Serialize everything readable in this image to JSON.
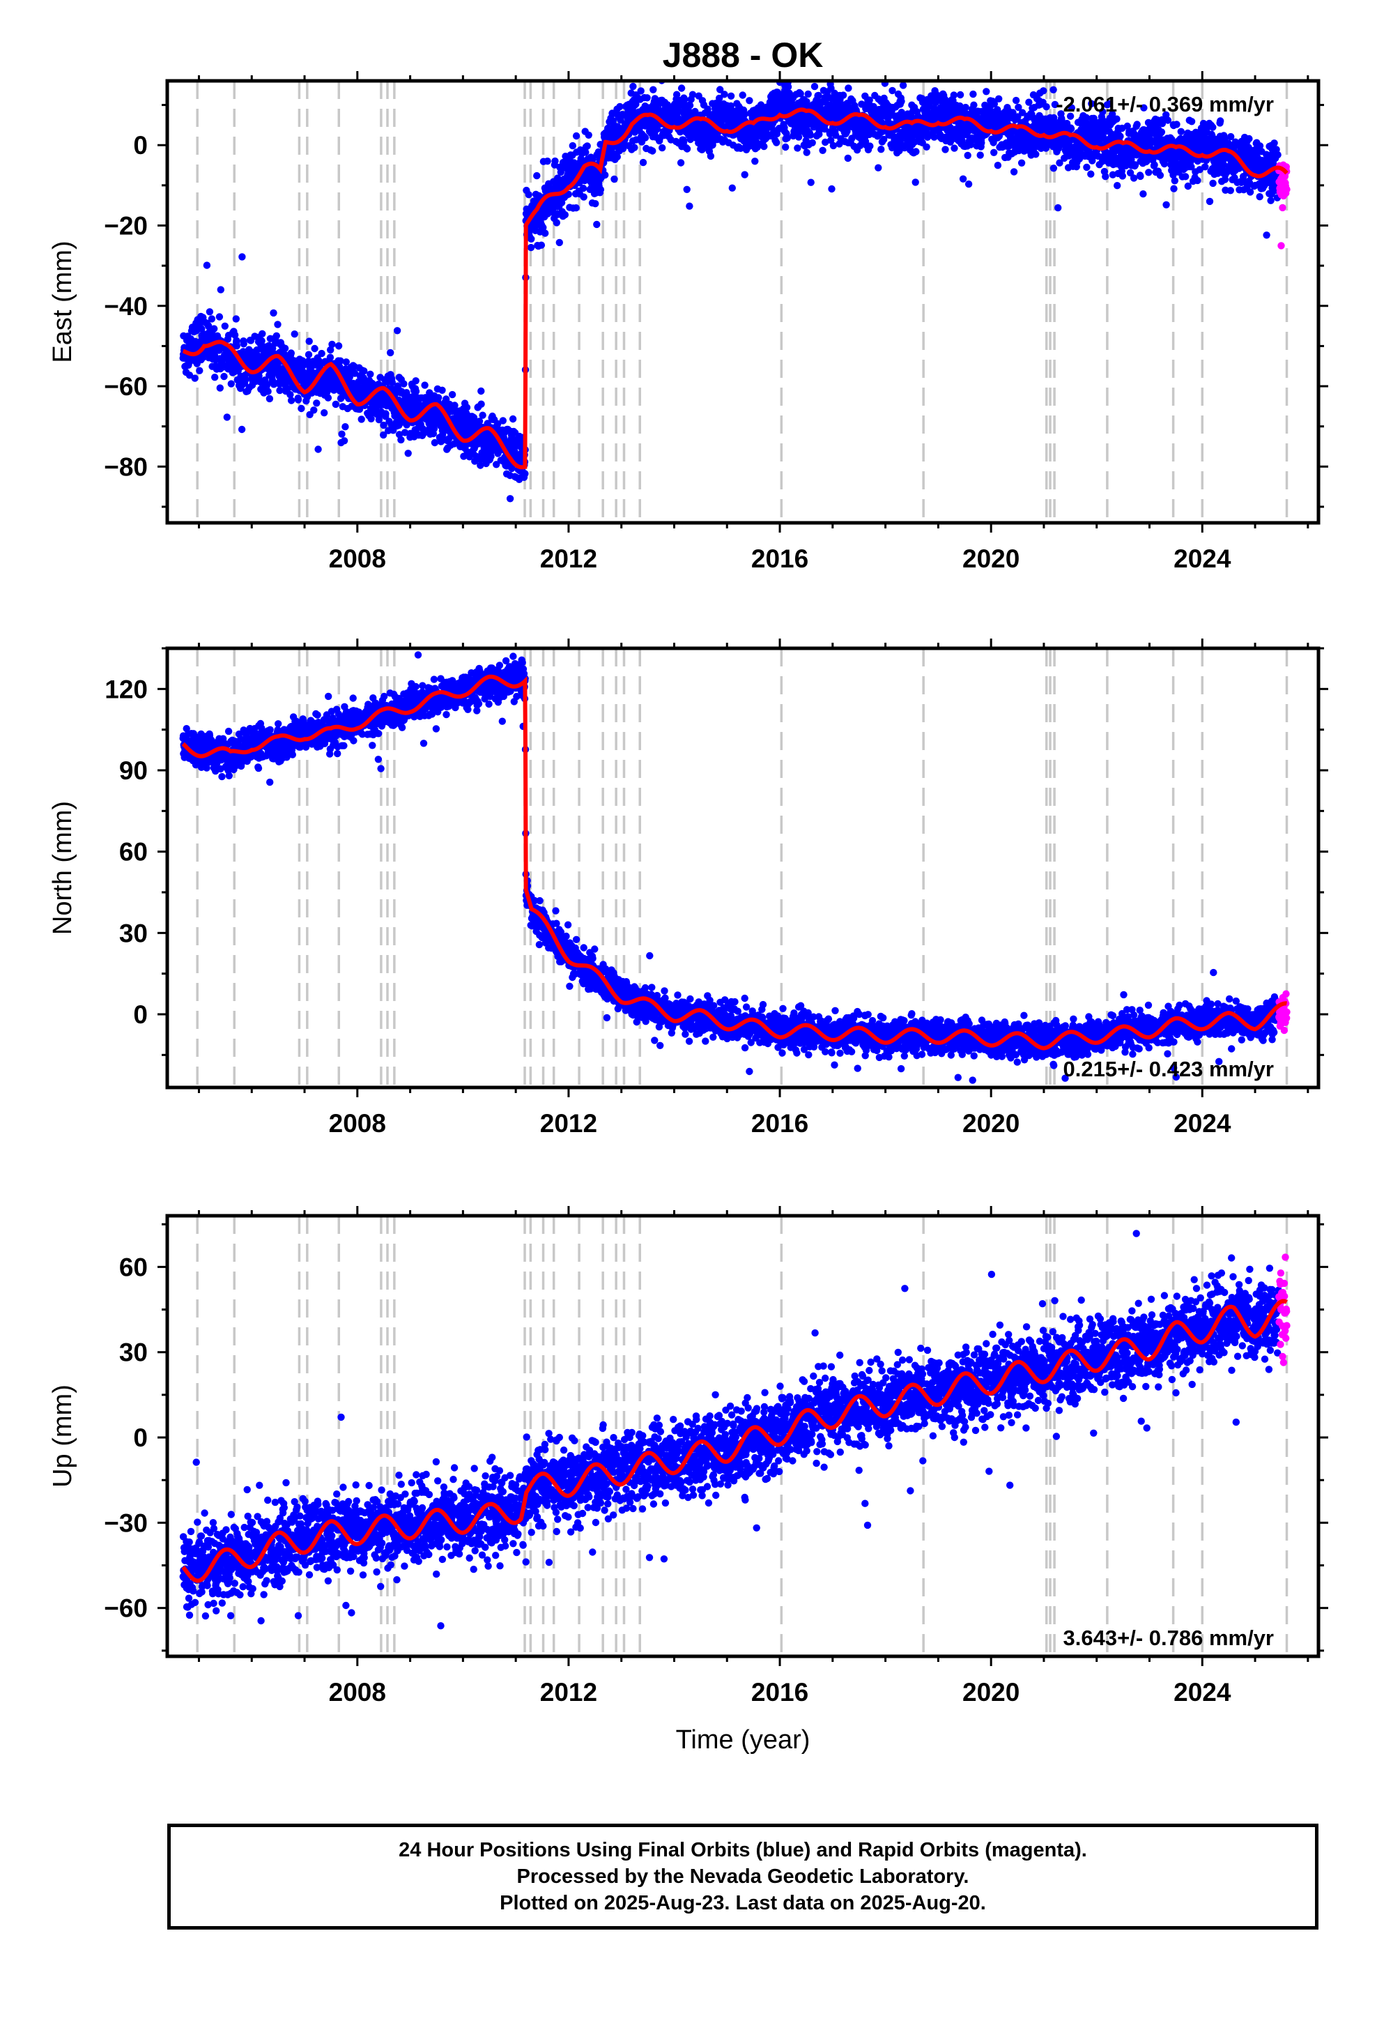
{
  "title": "J888 - OK",
  "x_axis_label": "Time (year)",
  "footer": {
    "line1": "24 Hour Positions Using Final Orbits (blue) and Rapid Orbits (magenta).",
    "line2": "Processed by the Nevada Geodetic Laboratory.",
    "line3": "Plotted on 2025-Aug-23. Last data on 2025-Aug-20."
  },
  "colors": {
    "final_orbits": "#0000ff",
    "rapid_orbits": "#ff00ff",
    "model": "#ff0000",
    "event_lines": "#c8c8c8"
  },
  "chart_data": [
    {
      "type": "scatter",
      "panel": "east",
      "ylabel": "East (mm)",
      "rate_label": "-2.061+/- 0.369 mm/yr",
      "xlim": [
        2004.4,
        2026.2
      ],
      "ylim": [
        -94,
        16
      ],
      "xticks": [
        2008,
        2012,
        2016,
        2020,
        2024
      ],
      "yticks": [
        -80,
        -60,
        -40,
        -20,
        0
      ],
      "model": {
        "x": [
          2004.7,
          2005.1,
          2005.5,
          2006.0,
          2006.5,
          2007.0,
          2007.5,
          2008.0,
          2008.5,
          2009.0,
          2009.5,
          2010.0,
          2010.5,
          2010.9,
          2011.18,
          2011.19,
          2011.4,
          2011.7,
          2012.0,
          2012.3,
          2012.6,
          2012.7,
          2013.0,
          2013.2,
          2013.5,
          2014.0,
          2014.5,
          2015.0,
          2015.5,
          2016.0,
          2016.5,
          2017.0,
          2017.5,
          2018.0,
          2018.5,
          2019.0,
          2019.5,
          2020.0,
          2020.5,
          2021.0,
          2021.5,
          2022.0,
          2022.5,
          2023.0,
          2023.5,
          2024.0,
          2024.5,
          2025.0,
          2025.6
        ],
        "y": [
          -52,
          -48,
          -52,
          -54,
          -55,
          -59,
          -57,
          -62,
          -63,
          -66,
          -67,
          -71,
          -73,
          -76,
          -79,
          -19,
          -18,
          -13,
          -8,
          -6,
          -8,
          0,
          4,
          6,
          5,
          7,
          4,
          6,
          3,
          10,
          6,
          8,
          5,
          7,
          3,
          8,
          4,
          6,
          2,
          5,
          0,
          2,
          -2,
          1,
          -3,
          0,
          -4,
          -5,
          -9
        ]
      },
      "seasonal_amplitude": 2.5,
      "scatter_sigma": 3.2
    },
    {
      "type": "scatter",
      "panel": "north",
      "ylabel": "North (mm)",
      "rate_label": "0.215+/- 0.423 mm/yr",
      "xlim": [
        2004.4,
        2026.2
      ],
      "ylim": [
        -27,
        135
      ],
      "xticks": [
        2008,
        2012,
        2016,
        2020,
        2024
      ],
      "yticks": [
        0,
        30,
        60,
        90,
        120
      ],
      "model": {
        "x": [
          2004.7,
          2005.2,
          2005.6,
          2006.0,
          2006.5,
          2007.0,
          2007.5,
          2008.0,
          2008.5,
          2009.0,
          2009.5,
          2010.0,
          2010.5,
          2011.18,
          2011.19,
          2011.3,
          2011.6,
          2012.0,
          2012.5,
          2013.0,
          2013.5,
          2014.0,
          2014.5,
          2015.0,
          2016.0,
          2017.0,
          2018.0,
          2019.0,
          2020.0,
          2021.0,
          2021.5,
          2022.0,
          2022.5,
          2023.0,
          2023.5,
          2024.0,
          2024.5,
          2025.0,
          2025.6
        ],
        "y": [
          99,
          97,
          95,
          100,
          100,
          104,
          103,
          108,
          110,
          114,
          116,
          120,
          122,
          124,
          47,
          38,
          31,
          22,
          14,
          7,
          3,
          0,
          -1,
          -3,
          -6,
          -7,
          -8,
          -8,
          -9,
          -10,
          -9,
          -8,
          -7,
          -6,
          -4,
          -3,
          -2,
          -3,
          2
        ]
      },
      "seasonal_amplitude": 2.5,
      "scatter_sigma": 3.0
    },
    {
      "type": "scatter",
      "panel": "up",
      "ylabel": "Up (mm)",
      "rate_label": "3.643+/- 0.786 mm/yr",
      "xlim": [
        2004.4,
        2026.2
      ],
      "ylim": [
        -77,
        78
      ],
      "xticks": [
        2008,
        2012,
        2016,
        2020,
        2024
      ],
      "yticks": [
        -60,
        -30,
        0,
        30,
        60
      ],
      "model": {
        "x": [
          2004.7,
          2005.5,
          2006.5,
          2007.5,
          2008.5,
          2009.5,
          2010.5,
          2011.1,
          2011.2,
          2012.0,
          2013.0,
          2014.0,
          2015.0,
          2016.0,
          2017.0,
          2018.0,
          2019.0,
          2020.0,
          2021.0,
          2022.0,
          2023.0,
          2023.5,
          2024.0,
          2024.6,
          2025.0,
          2025.6
        ],
        "y": [
          -47,
          -44,
          -38,
          -34,
          -32,
          -30,
          -28,
          -25,
          -18,
          -16,
          -12,
          -8,
          -4,
          2,
          8,
          12,
          16,
          20,
          24,
          28,
          32,
          36,
          38,
          42,
          40,
          44
        ]
      },
      "seasonal_amplitude": 4.5,
      "scatter_sigma": 6.5
    }
  ],
  "event_lines_x": [
    2004.97,
    2005.67,
    2006.9,
    2007.05,
    2007.65,
    2008.45,
    2008.57,
    2008.7,
    2011.17,
    2011.28,
    2011.52,
    2011.72,
    2012.2,
    2012.65,
    2012.9,
    2013.05,
    2013.35,
    2016.03,
    2018.72,
    2021.05,
    2021.12,
    2021.2,
    2022.2,
    2023.45,
    2024.0,
    2025.6
  ],
  "rapid_orbit_range": [
    2025.45,
    2025.64
  ]
}
